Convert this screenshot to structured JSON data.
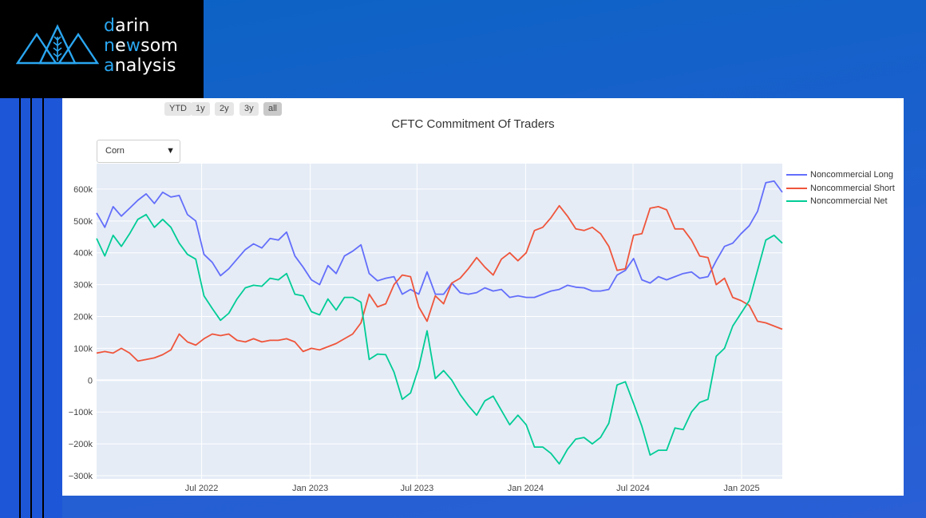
{
  "logo": {
    "lines": [
      {
        "first": "d",
        "rest": "arin"
      },
      {
        "first": "n",
        "mid": "e",
        "hl": "w",
        "rest": "som"
      },
      {
        "first": "a",
        "rest": "nalysis"
      }
    ]
  },
  "colors": {
    "accent": "#2aa6f0",
    "plot_bg": "#e5ecf6",
    "long": "#636efa",
    "short": "#ef553b",
    "net": "#00cc96"
  },
  "range_buttons": [
    "YTD",
    "1y",
    "2y",
    "3y",
    "all"
  ],
  "active_range": "all",
  "dropdown": {
    "selected": "Corn"
  },
  "chart_data": {
    "type": "line",
    "title": "CFTC Commitment Of Traders",
    "x_range": [
      "2022-01-04",
      "2025-03-11"
    ],
    "ylim": [
      -310000,
      680000
    ],
    "y_ticks": [
      600000,
      500000,
      400000,
      300000,
      200000,
      100000,
      0,
      -100000,
      -200000,
      -300000
    ],
    "y_tick_labels": [
      "600k",
      "500k",
      "400k",
      "300k",
      "200k",
      "100k",
      "0",
      "−100k",
      "−200k",
      "−300k"
    ],
    "x_ticks": [
      "2022-07-01",
      "2023-01-01",
      "2023-07-01",
      "2024-01-01",
      "2024-07-01",
      "2025-01-01"
    ],
    "x_tick_labels": [
      "Jul 2022",
      "Jan 2023",
      "Jul 2023",
      "Jan 2024",
      "Jul 2024",
      "Jan 2025"
    ],
    "legend_position": "right",
    "grid": true,
    "series": [
      {
        "name": "Noncommercial Long",
        "color": "#636efa",
        "points": [
          [
            "2022-01-04",
            525000
          ],
          [
            "2022-01-18",
            480000
          ],
          [
            "2022-02-01",
            545000
          ],
          [
            "2022-02-15",
            515000
          ],
          [
            "2022-03-01",
            540000
          ],
          [
            "2022-03-15",
            565000
          ],
          [
            "2022-03-29",
            585000
          ],
          [
            "2022-04-12",
            555000
          ],
          [
            "2022-04-26",
            590000
          ],
          [
            "2022-05-10",
            575000
          ],
          [
            "2022-05-24",
            580000
          ],
          [
            "2022-06-07",
            520000
          ],
          [
            "2022-06-21",
            500000
          ],
          [
            "2022-07-05",
            395000
          ],
          [
            "2022-07-19",
            370000
          ],
          [
            "2022-08-02",
            328000
          ],
          [
            "2022-08-16",
            350000
          ],
          [
            "2022-08-30",
            380000
          ],
          [
            "2022-09-13",
            410000
          ],
          [
            "2022-09-27",
            428000
          ],
          [
            "2022-10-11",
            415000
          ],
          [
            "2022-10-25",
            445000
          ],
          [
            "2022-11-08",
            440000
          ],
          [
            "2022-11-22",
            465000
          ],
          [
            "2022-12-06",
            390000
          ],
          [
            "2022-12-20",
            355000
          ],
          [
            "2023-01-03",
            315000
          ],
          [
            "2023-01-17",
            300000
          ],
          [
            "2023-01-31",
            360000
          ],
          [
            "2023-02-14",
            335000
          ],
          [
            "2023-02-28",
            390000
          ],
          [
            "2023-03-14",
            405000
          ],
          [
            "2023-03-28",
            425000
          ],
          [
            "2023-04-11",
            335000
          ],
          [
            "2023-04-25",
            312000
          ],
          [
            "2023-05-09",
            320000
          ],
          [
            "2023-05-23",
            325000
          ],
          [
            "2023-06-06",
            270000
          ],
          [
            "2023-06-20",
            285000
          ],
          [
            "2023-07-04",
            270000
          ],
          [
            "2023-07-18",
            340000
          ],
          [
            "2023-08-01",
            270000
          ],
          [
            "2023-08-15",
            270000
          ],
          [
            "2023-08-29",
            305000
          ],
          [
            "2023-09-12",
            275000
          ],
          [
            "2023-09-26",
            270000
          ],
          [
            "2023-10-10",
            275000
          ],
          [
            "2023-10-24",
            290000
          ],
          [
            "2023-11-07",
            280000
          ],
          [
            "2023-11-21",
            285000
          ],
          [
            "2023-12-05",
            260000
          ],
          [
            "2023-12-19",
            265000
          ],
          [
            "2024-01-02",
            260000
          ],
          [
            "2024-01-16",
            260000
          ],
          [
            "2024-01-30",
            270000
          ],
          [
            "2024-02-13",
            280000
          ],
          [
            "2024-02-27",
            285000
          ],
          [
            "2024-03-12",
            298000
          ],
          [
            "2024-03-26",
            292000
          ],
          [
            "2024-04-09",
            290000
          ],
          [
            "2024-04-23",
            280000
          ],
          [
            "2024-05-07",
            280000
          ],
          [
            "2024-05-21",
            285000
          ],
          [
            "2024-06-04",
            330000
          ],
          [
            "2024-06-18",
            345000
          ],
          [
            "2024-07-02",
            382000
          ],
          [
            "2024-07-16",
            315000
          ],
          [
            "2024-07-30",
            305000
          ],
          [
            "2024-08-13",
            325000
          ],
          [
            "2024-08-27",
            315000
          ],
          [
            "2024-09-10",
            325000
          ],
          [
            "2024-09-24",
            335000
          ],
          [
            "2024-10-08",
            340000
          ],
          [
            "2024-10-22",
            320000
          ],
          [
            "2024-11-05",
            325000
          ],
          [
            "2024-11-19",
            375000
          ],
          [
            "2024-12-03",
            420000
          ],
          [
            "2024-12-17",
            430000
          ],
          [
            "2024-12-31",
            460000
          ],
          [
            "2025-01-14",
            485000
          ],
          [
            "2025-01-28",
            530000
          ],
          [
            "2025-02-11",
            620000
          ],
          [
            "2025-02-25",
            625000
          ],
          [
            "2025-03-11",
            590000
          ]
        ]
      },
      {
        "name": "Noncommercial Short",
        "color": "#ef553b",
        "points": [
          [
            "2022-01-04",
            85000
          ],
          [
            "2022-01-18",
            90000
          ],
          [
            "2022-02-01",
            85000
          ],
          [
            "2022-02-15",
            100000
          ],
          [
            "2022-03-01",
            85000
          ],
          [
            "2022-03-15",
            60000
          ],
          [
            "2022-03-29",
            65000
          ],
          [
            "2022-04-12",
            70000
          ],
          [
            "2022-04-26",
            80000
          ],
          [
            "2022-05-10",
            95000
          ],
          [
            "2022-05-24",
            145000
          ],
          [
            "2022-06-07",
            120000
          ],
          [
            "2022-06-21",
            110000
          ],
          [
            "2022-07-05",
            130000
          ],
          [
            "2022-07-19",
            145000
          ],
          [
            "2022-08-02",
            140000
          ],
          [
            "2022-08-16",
            145000
          ],
          [
            "2022-08-30",
            125000
          ],
          [
            "2022-09-13",
            120000
          ],
          [
            "2022-09-27",
            130000
          ],
          [
            "2022-10-11",
            120000
          ],
          [
            "2022-10-25",
            125000
          ],
          [
            "2022-11-08",
            125000
          ],
          [
            "2022-11-22",
            130000
          ],
          [
            "2022-12-06",
            120000
          ],
          [
            "2022-12-20",
            90000
          ],
          [
            "2023-01-03",
            100000
          ],
          [
            "2023-01-17",
            95000
          ],
          [
            "2023-01-31",
            105000
          ],
          [
            "2023-02-14",
            115000
          ],
          [
            "2023-02-28",
            130000
          ],
          [
            "2023-03-14",
            145000
          ],
          [
            "2023-03-28",
            180000
          ],
          [
            "2023-04-11",
            270000
          ],
          [
            "2023-04-25",
            230000
          ],
          [
            "2023-05-09",
            240000
          ],
          [
            "2023-05-23",
            300000
          ],
          [
            "2023-06-06",
            330000
          ],
          [
            "2023-06-20",
            325000
          ],
          [
            "2023-07-04",
            230000
          ],
          [
            "2023-07-18",
            185000
          ],
          [
            "2023-08-01",
            265000
          ],
          [
            "2023-08-15",
            240000
          ],
          [
            "2023-08-29",
            305000
          ],
          [
            "2023-09-12",
            320000
          ],
          [
            "2023-09-26",
            350000
          ],
          [
            "2023-10-10",
            385000
          ],
          [
            "2023-10-24",
            355000
          ],
          [
            "2023-11-07",
            330000
          ],
          [
            "2023-11-21",
            380000
          ],
          [
            "2023-12-05",
            400000
          ],
          [
            "2023-12-19",
            375000
          ],
          [
            "2024-01-02",
            400000
          ],
          [
            "2024-01-16",
            470000
          ],
          [
            "2024-01-30",
            480000
          ],
          [
            "2024-02-13",
            510000
          ],
          [
            "2024-02-27",
            548000
          ],
          [
            "2024-03-12",
            515000
          ],
          [
            "2024-03-26",
            475000
          ],
          [
            "2024-04-09",
            470000
          ],
          [
            "2024-04-23",
            480000
          ],
          [
            "2024-05-07",
            460000
          ],
          [
            "2024-05-21",
            420000
          ],
          [
            "2024-06-04",
            345000
          ],
          [
            "2024-06-18",
            350000
          ],
          [
            "2024-07-02",
            455000
          ],
          [
            "2024-07-16",
            460000
          ],
          [
            "2024-07-30",
            540000
          ],
          [
            "2024-08-13",
            545000
          ],
          [
            "2024-08-27",
            535000
          ],
          [
            "2024-09-10",
            475000
          ],
          [
            "2024-09-24",
            475000
          ],
          [
            "2024-10-08",
            440000
          ],
          [
            "2024-10-22",
            390000
          ],
          [
            "2024-11-05",
            385000
          ],
          [
            "2024-11-19",
            300000
          ],
          [
            "2024-12-03",
            320000
          ],
          [
            "2024-12-17",
            260000
          ],
          [
            "2024-12-31",
            250000
          ],
          [
            "2025-01-14",
            235000
          ],
          [
            "2025-01-28",
            185000
          ],
          [
            "2025-02-11",
            180000
          ],
          [
            "2025-02-25",
            170000
          ],
          [
            "2025-03-11",
            160000
          ]
        ]
      },
      {
        "name": "Noncommercial Net",
        "color": "#00cc96",
        "points": [
          [
            "2022-01-04",
            445000
          ],
          [
            "2022-01-18",
            390000
          ],
          [
            "2022-02-01",
            455000
          ],
          [
            "2022-02-15",
            420000
          ],
          [
            "2022-03-01",
            460000
          ],
          [
            "2022-03-15",
            505000
          ],
          [
            "2022-03-29",
            520000
          ],
          [
            "2022-04-12",
            480000
          ],
          [
            "2022-04-26",
            505000
          ],
          [
            "2022-05-10",
            480000
          ],
          [
            "2022-05-24",
            430000
          ],
          [
            "2022-06-07",
            395000
          ],
          [
            "2022-06-21",
            380000
          ],
          [
            "2022-07-05",
            265000
          ],
          [
            "2022-07-19",
            225000
          ],
          [
            "2022-08-02",
            188000
          ],
          [
            "2022-08-16",
            210000
          ],
          [
            "2022-08-30",
            255000
          ],
          [
            "2022-09-13",
            290000
          ],
          [
            "2022-09-27",
            298000
          ],
          [
            "2022-10-11",
            295000
          ],
          [
            "2022-10-25",
            320000
          ],
          [
            "2022-11-08",
            315000
          ],
          [
            "2022-11-22",
            335000
          ],
          [
            "2022-12-06",
            270000
          ],
          [
            "2022-12-20",
            265000
          ],
          [
            "2023-01-03",
            215000
          ],
          [
            "2023-01-17",
            205000
          ],
          [
            "2023-01-31",
            255000
          ],
          [
            "2023-02-14",
            220000
          ],
          [
            "2023-02-28",
            260000
          ],
          [
            "2023-03-14",
            260000
          ],
          [
            "2023-03-28",
            245000
          ],
          [
            "2023-04-11",
            65000
          ],
          [
            "2023-04-25",
            82000
          ],
          [
            "2023-05-09",
            80000
          ],
          [
            "2023-05-23",
            25000
          ],
          [
            "2023-06-06",
            -60000
          ],
          [
            "2023-06-20",
            -40000
          ],
          [
            "2023-07-04",
            40000
          ],
          [
            "2023-07-18",
            155000
          ],
          [
            "2023-08-01",
            5000
          ],
          [
            "2023-08-15",
            30000
          ],
          [
            "2023-08-29",
            0
          ],
          [
            "2023-09-12",
            -45000
          ],
          [
            "2023-09-26",
            -80000
          ],
          [
            "2023-10-10",
            -110000
          ],
          [
            "2023-10-24",
            -65000
          ],
          [
            "2023-11-07",
            -50000
          ],
          [
            "2023-11-21",
            -95000
          ],
          [
            "2023-12-05",
            -140000
          ],
          [
            "2023-12-19",
            -110000
          ],
          [
            "2024-01-02",
            -140000
          ],
          [
            "2024-01-16",
            -210000
          ],
          [
            "2024-01-30",
            -210000
          ],
          [
            "2024-02-13",
            -230000
          ],
          [
            "2024-02-27",
            -263000
          ],
          [
            "2024-03-12",
            -217000
          ],
          [
            "2024-03-26",
            -185000
          ],
          [
            "2024-04-09",
            -180000
          ],
          [
            "2024-04-23",
            -200000
          ],
          [
            "2024-05-07",
            -180000
          ],
          [
            "2024-05-21",
            -135000
          ],
          [
            "2024-06-04",
            -15000
          ],
          [
            "2024-06-18",
            -5000
          ],
          [
            "2024-07-02",
            -73000
          ],
          [
            "2024-07-16",
            -145000
          ],
          [
            "2024-07-30",
            -235000
          ],
          [
            "2024-08-13",
            -220000
          ],
          [
            "2024-08-27",
            -220000
          ],
          [
            "2024-09-10",
            -150000
          ],
          [
            "2024-09-24",
            -155000
          ],
          [
            "2024-10-08",
            -100000
          ],
          [
            "2024-10-22",
            -70000
          ],
          [
            "2024-11-05",
            -60000
          ],
          [
            "2024-11-19",
            75000
          ],
          [
            "2024-12-03",
            100000
          ],
          [
            "2024-12-17",
            170000
          ],
          [
            "2024-12-31",
            210000
          ],
          [
            "2025-01-14",
            250000
          ],
          [
            "2025-01-28",
            345000
          ],
          [
            "2025-02-11",
            440000
          ],
          [
            "2025-02-25",
            455000
          ],
          [
            "2025-03-11",
            430000
          ]
        ]
      }
    ]
  }
}
